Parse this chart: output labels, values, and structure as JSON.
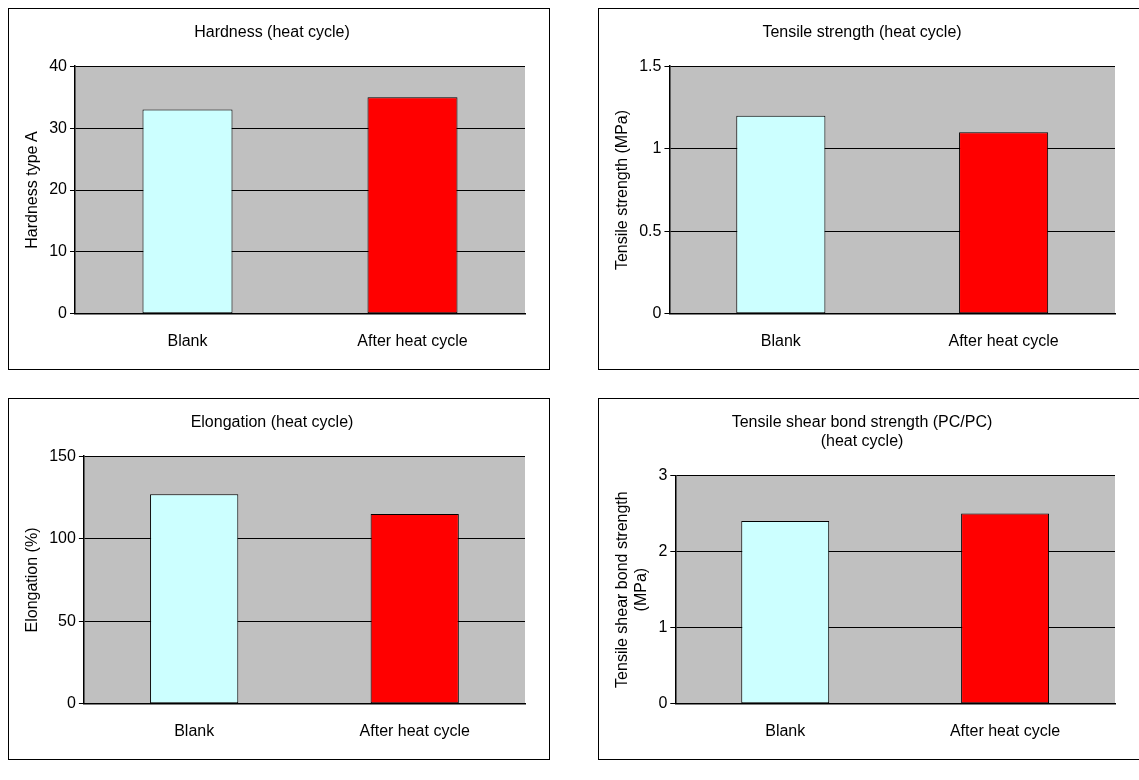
{
  "chart_data": [
    {
      "type": "bar",
      "title": "Hardness (heat cycle)",
      "ylabel": "Hardness type A",
      "categories": [
        "Blank",
        "After heat cycle"
      ],
      "values": [
        33,
        35
      ],
      "colors": [
        "#ccffff",
        "#ff0000"
      ],
      "ylim": [
        0,
        40
      ],
      "yticks": [
        0,
        10,
        20,
        30,
        40
      ],
      "grid": "y"
    },
    {
      "type": "bar",
      "title": "Tensile strength (heat cycle)",
      "ylabel": "Tensile strength (MPa)",
      "categories": [
        "Blank",
        "After heat cycle"
      ],
      "values": [
        1.2,
        1.1
      ],
      "colors": [
        "#ccffff",
        "#ff0000"
      ],
      "ylim": [
        0,
        1.5
      ],
      "yticks": [
        0,
        0.5,
        1,
        1.5
      ],
      "grid": "y"
    },
    {
      "type": "bar",
      "title": "Elongation (heat cycle)",
      "ylabel": "Elongation (%)",
      "categories": [
        "Blank",
        "After heat cycle"
      ],
      "values": [
        127,
        115
      ],
      "colors": [
        "#ccffff",
        "#ff0000"
      ],
      "ylim": [
        0,
        150
      ],
      "yticks": [
        0,
        50,
        100,
        150
      ],
      "grid": "y"
    },
    {
      "type": "bar",
      "title": "Tensile shear bond strength (PC/PC)\n(heat cycle)",
      "ylabel": "Tensile shear bond strength\n(MPa)",
      "categories": [
        "Blank",
        "After heat cycle"
      ],
      "values": [
        2.4,
        2.5
      ],
      "colors": [
        "#ccffff",
        "#ff0000"
      ],
      "ylim": [
        0,
        3
      ],
      "yticks": [
        0,
        1,
        2,
        3
      ],
      "grid": "y"
    }
  ]
}
